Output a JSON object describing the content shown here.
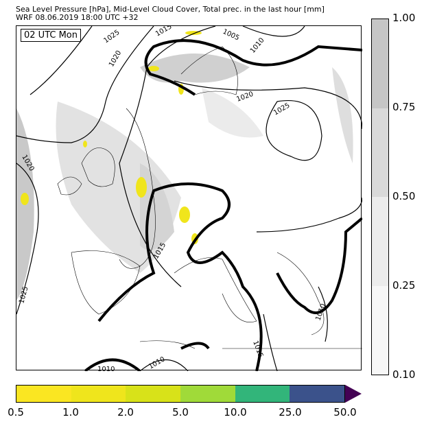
{
  "header": {
    "title": "Sea Level Pressure [hPa], Mid-Level Cloud Cover, Total prec. in the last hour [mm]",
    "subtitle": "WRF 08.06.2019 18:00 UTC +32"
  },
  "map": {
    "time_label": "02 UTC Mon",
    "isobar_labels": [
      "1025",
      "1015",
      "1005",
      "1010",
      "1020",
      "1020",
      "1025",
      "1020",
      "1025",
      "1015",
      "1010",
      "1015",
      "1010",
      "1010"
    ]
  },
  "cloud_colorbar": {
    "ticks": [
      "1.00",
      "0.75",
      "0.50",
      "0.25",
      "0.10"
    ],
    "colors": [
      "#c6c6c6",
      "#d9d9d9",
      "#ececec",
      "#f7f7f7"
    ]
  },
  "precip_colorbar": {
    "ticks": [
      "0.5",
      "1.0",
      "2.0",
      "5.0",
      "10.0",
      "25.0",
      "50.0"
    ],
    "colors": [
      "#fae622",
      "#efe51c",
      "#d8e219",
      "#a0da39",
      "#32b57a",
      "#3b528b"
    ],
    "extend_color": "#440154"
  }
}
